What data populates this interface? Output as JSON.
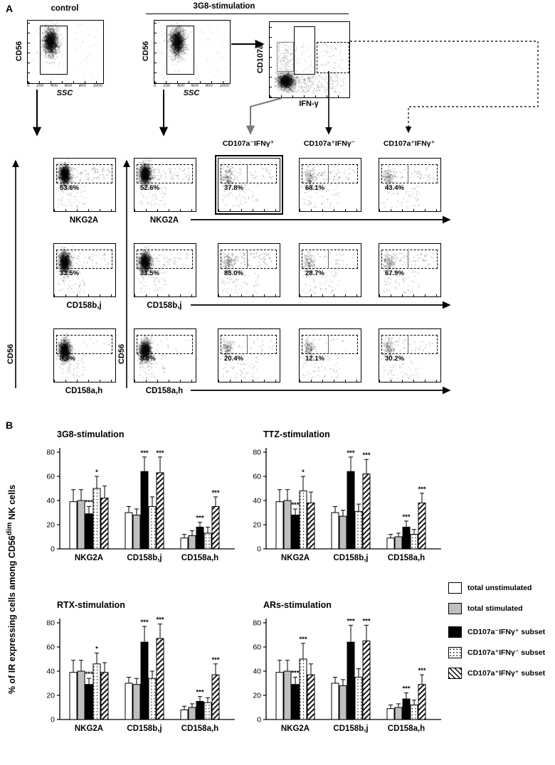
{
  "figure": {
    "panel_a_label": "A",
    "panel_b_label": "B"
  },
  "panelA": {
    "control_title": "control",
    "stim_title": "3G8-stimulation",
    "gating": {
      "ssc_xlabel": "SSC",
      "cd56_ylabel": "CD56",
      "cyto_xlabel": "IFN-γ",
      "cyto_ylabel": "CD107a",
      "ssc_ticks": [
        "0",
        "200",
        "400",
        "600",
        "800",
        "1000"
      ]
    },
    "subset_headers": [
      "CD107a⁻IFNγ⁺",
      "CD107a⁺IFNγ⁻",
      "CD107a⁺IFNγ⁺"
    ],
    "y_axis_marker": "CD56",
    "rows": [
      {
        "marker": "NKG2A",
        "values": [
          "53.6%",
          "52.6%",
          "37.8%",
          "68.1%",
          "43.4%"
        ],
        "highlight_col": 2
      },
      {
        "marker": "CD158b,j",
        "values": [
          "33.5%",
          "33.5%",
          "85.0%",
          "28.7%",
          "67.9%"
        ],
        "highlight_col": -1
      },
      {
        "marker": "CD158a,h",
        "values": [
          "8.4%",
          "8.6%",
          "20.4%",
          "12.1%",
          "30.2%"
        ],
        "highlight_col": -1
      }
    ]
  },
  "panelB": {
    "ylabel_pre": "% of IR expressing cells among CD56",
    "ylabel_sup": "dim",
    "ylabel_post": " NK cells"
  },
  "legend": {
    "items": [
      {
        "label": "total unstimulated",
        "style": "white"
      },
      {
        "label": "total stimulated",
        "style": "gray"
      },
      {
        "label": "CD107a⁻IFNγ⁺ subset",
        "style": "black"
      },
      {
        "label": "CD107a⁺IFNγ⁻ subset",
        "style": "dots"
      },
      {
        "label": "CD107a⁺IFNγ⁺ subset",
        "style": "hatch"
      }
    ]
  },
  "chart_data": [
    {
      "type": "bar",
      "title": "3G8-stimulation",
      "categories": [
        "NKG2A",
        "CD158b,j",
        "CD158a,h"
      ],
      "ylim": [
        0,
        80
      ],
      "yticks": [
        0,
        20,
        40,
        60,
        80
      ],
      "series": [
        {
          "name": "total unstimulated",
          "values": [
            39,
            30,
            9
          ],
          "errors": [
            10,
            5,
            3
          ],
          "sig": [
            null,
            null,
            null
          ]
        },
        {
          "name": "total stimulated",
          "values": [
            40,
            28,
            11
          ],
          "errors": [
            9,
            5,
            4
          ],
          "sig": [
            null,
            null,
            null
          ]
        },
        {
          "name": "CD107a-IFNg+ subset",
          "values": [
            29,
            64,
            18
          ],
          "errors": [
            6,
            12,
            4
          ],
          "sig": [
            "***",
            "***",
            "***"
          ]
        },
        {
          "name": "CD107a+IFNg- subset",
          "values": [
            50,
            35,
            13
          ],
          "errors": [
            10,
            8,
            5
          ],
          "sig": [
            "*",
            null,
            null
          ]
        },
        {
          "name": "CD107a+IFNg+ subset",
          "values": [
            42,
            63,
            35
          ],
          "errors": [
            10,
            13,
            8
          ],
          "sig": [
            null,
            "***",
            "***"
          ]
        }
      ]
    },
    {
      "type": "bar",
      "title": "TTZ-stimulation",
      "categories": [
        "NKG2A",
        "CD158b,j",
        "CD158a,h"
      ],
      "ylim": [
        0,
        80
      ],
      "yticks": [
        0,
        20,
        40,
        60,
        80
      ],
      "series": [
        {
          "name": "total unstimulated",
          "values": [
            39,
            30,
            9
          ],
          "errors": [
            10,
            5,
            3
          ],
          "sig": [
            null,
            null,
            null
          ]
        },
        {
          "name": "total stimulated",
          "values": [
            40,
            27,
            10
          ],
          "errors": [
            9,
            5,
            3
          ],
          "sig": [
            null,
            null,
            null
          ]
        },
        {
          "name": "CD107a-IFNg+ subset",
          "values": [
            28,
            64,
            18
          ],
          "errors": [
            5,
            12,
            5
          ],
          "sig": [
            "***",
            "***",
            "***"
          ]
        },
        {
          "name": "CD107a+IFNg- subset",
          "values": [
            48,
            31,
            12
          ],
          "errors": [
            12,
            6,
            4
          ],
          "sig": [
            "*",
            null,
            null
          ]
        },
        {
          "name": "CD107a+IFNg+ subset",
          "values": [
            38,
            62,
            38
          ],
          "errors": [
            9,
            12,
            8
          ],
          "sig": [
            null,
            "***",
            "***"
          ]
        }
      ]
    },
    {
      "type": "bar",
      "title": "RTX-stimulation",
      "categories": [
        "NKG2A",
        "CD158b,j",
        "CD158a,h"
      ],
      "ylim": [
        0,
        80
      ],
      "yticks": [
        0,
        20,
        40,
        60,
        80
      ],
      "series": [
        {
          "name": "total unstimulated",
          "values": [
            39,
            30,
            8
          ],
          "errors": [
            10,
            5,
            3
          ],
          "sig": [
            null,
            null,
            null
          ]
        },
        {
          "name": "total stimulated",
          "values": [
            40,
            29,
            10
          ],
          "errors": [
            9,
            5,
            3
          ],
          "sig": [
            null,
            null,
            null
          ]
        },
        {
          "name": "CD107a-IFNg+ subset",
          "values": [
            29,
            64,
            15
          ],
          "errors": [
            5,
            13,
            4
          ],
          "sig": [
            "***",
            "***",
            "***"
          ]
        },
        {
          "name": "CD107a+IFNg- subset",
          "values": [
            46,
            34,
            14
          ],
          "errors": [
            9,
            6,
            4
          ],
          "sig": [
            "*",
            null,
            null
          ]
        },
        {
          "name": "CD107a+IFNg+ subset",
          "values": [
            39,
            67,
            37
          ],
          "errors": [
            8,
            12,
            9
          ],
          "sig": [
            null,
            "***",
            "***"
          ]
        }
      ]
    },
    {
      "type": "bar",
      "title": "ARs-stimulation",
      "categories": [
        "NKG2A",
        "CD158b,j",
        "CD158a,h"
      ],
      "ylim": [
        0,
        80
      ],
      "yticks": [
        0,
        20,
        40,
        60,
        80
      ],
      "series": [
        {
          "name": "total unstimulated",
          "values": [
            39,
            30,
            9
          ],
          "errors": [
            10,
            5,
            3
          ],
          "sig": [
            null,
            null,
            null
          ]
        },
        {
          "name": "total stimulated",
          "values": [
            40,
            28,
            10
          ],
          "errors": [
            9,
            5,
            3
          ],
          "sig": [
            null,
            null,
            null
          ]
        },
        {
          "name": "CD107a-IFNg+ subset",
          "values": [
            29,
            64,
            17
          ],
          "errors": [
            6,
            14,
            5
          ],
          "sig": [
            "***",
            "***",
            "***"
          ]
        },
        {
          "name": "CD107a+IFNg- subset",
          "values": [
            50,
            35,
            12
          ],
          "errors": [
            13,
            7,
            4
          ],
          "sig": [
            "***",
            null,
            null
          ]
        },
        {
          "name": "CD107a+IFNg+ subset",
          "values": [
            37,
            65,
            29
          ],
          "errors": [
            9,
            13,
            8
          ],
          "sig": [
            null,
            "***",
            "***"
          ]
        }
      ]
    }
  ]
}
